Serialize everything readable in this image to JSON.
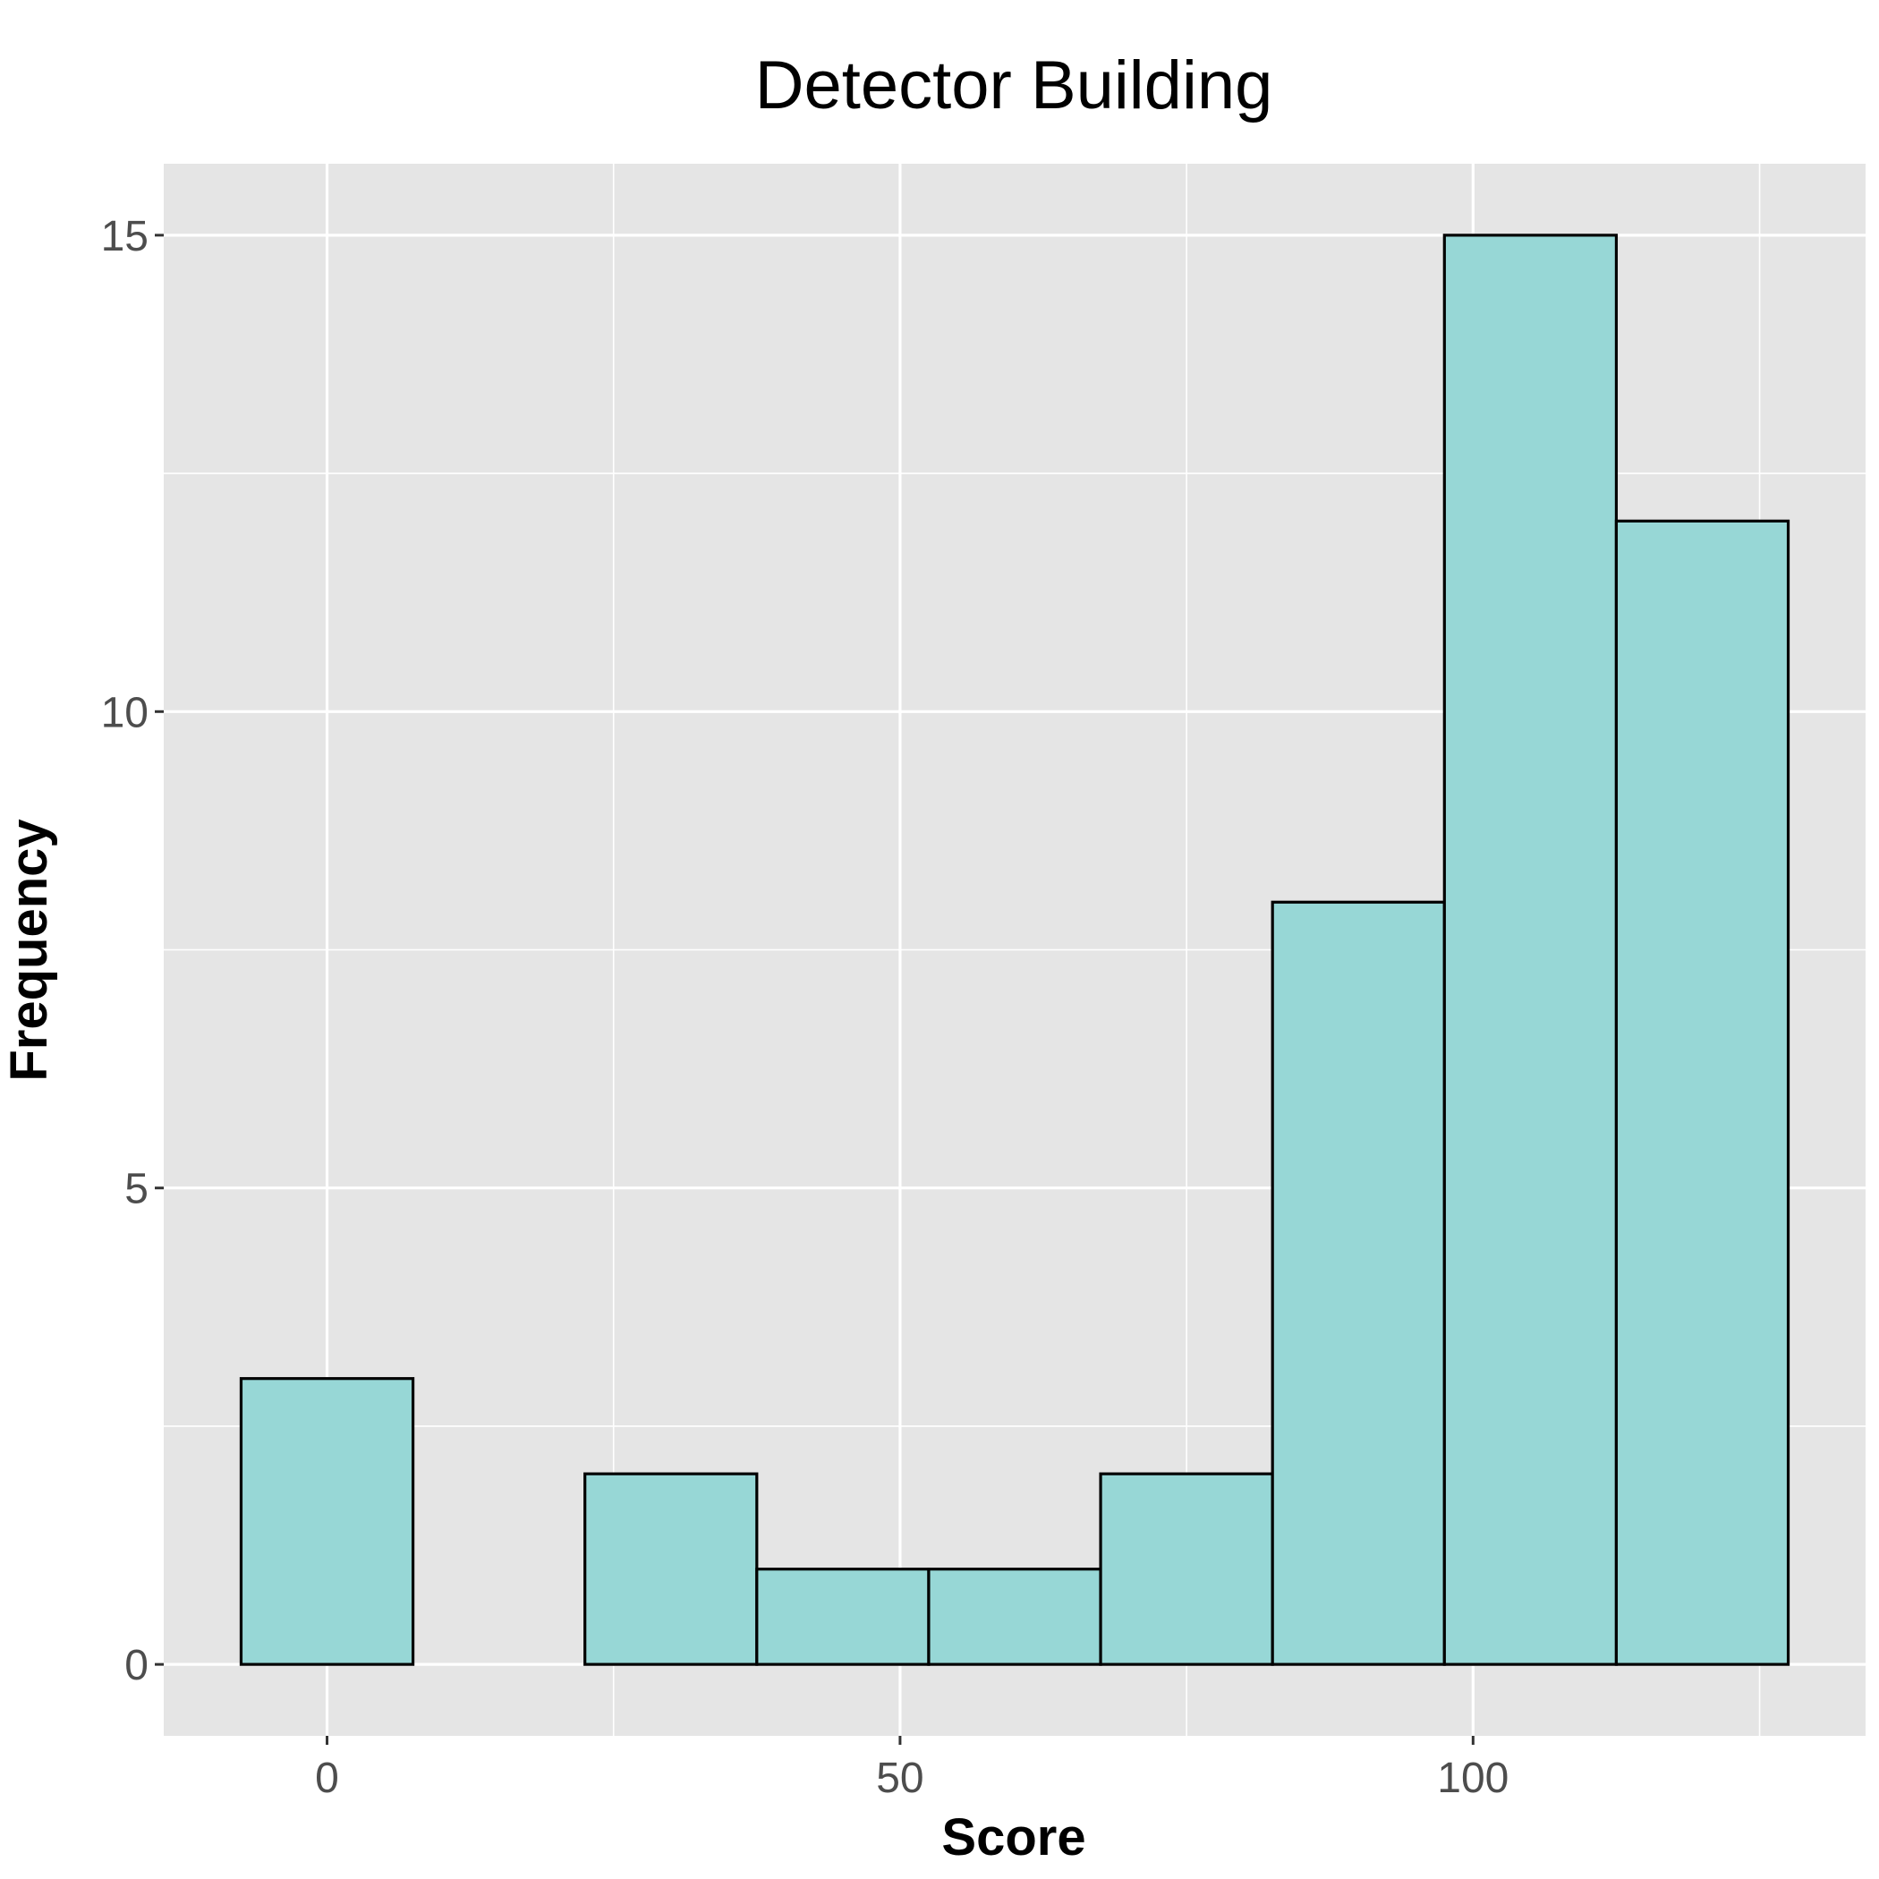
{
  "chart_data": {
    "type": "histogram",
    "title": "Detector Building",
    "xlabel": "Score",
    "ylabel": "Frequency",
    "bin_width": 15,
    "bins": [
      {
        "start": -7.5,
        "end": 7.5,
        "count": 3
      },
      {
        "start": 7.5,
        "end": 22.5,
        "count": 0
      },
      {
        "start": 22.5,
        "end": 37.5,
        "count": 2
      },
      {
        "start": 37.5,
        "end": 52.5,
        "count": 1
      },
      {
        "start": 52.5,
        "end": 67.5,
        "count": 1
      },
      {
        "start": 67.5,
        "end": 82.5,
        "count": 2
      },
      {
        "start": 82.5,
        "end": 97.5,
        "count": 8
      },
      {
        "start": 97.5,
        "end": 112.5,
        "count": 15
      },
      {
        "start": 112.5,
        "end": 127.5,
        "count": 12
      }
    ],
    "xlim": [
      -14.25,
      134.25
    ],
    "ylim": [
      -0.75,
      15.75
    ],
    "x_ticks": [
      0,
      50,
      100
    ],
    "x_tick_labels": [
      "0",
      "50",
      "100"
    ],
    "y_ticks": [
      0,
      5,
      10,
      15
    ],
    "y_tick_labels": [
      "0",
      "5",
      "10",
      "15"
    ],
    "grid": true,
    "colors": {
      "panel_background": "#e5e5e5",
      "grid_line": "#ffffff",
      "bar_fill": "#97d7d6",
      "bar_outline": "#000000"
    }
  }
}
